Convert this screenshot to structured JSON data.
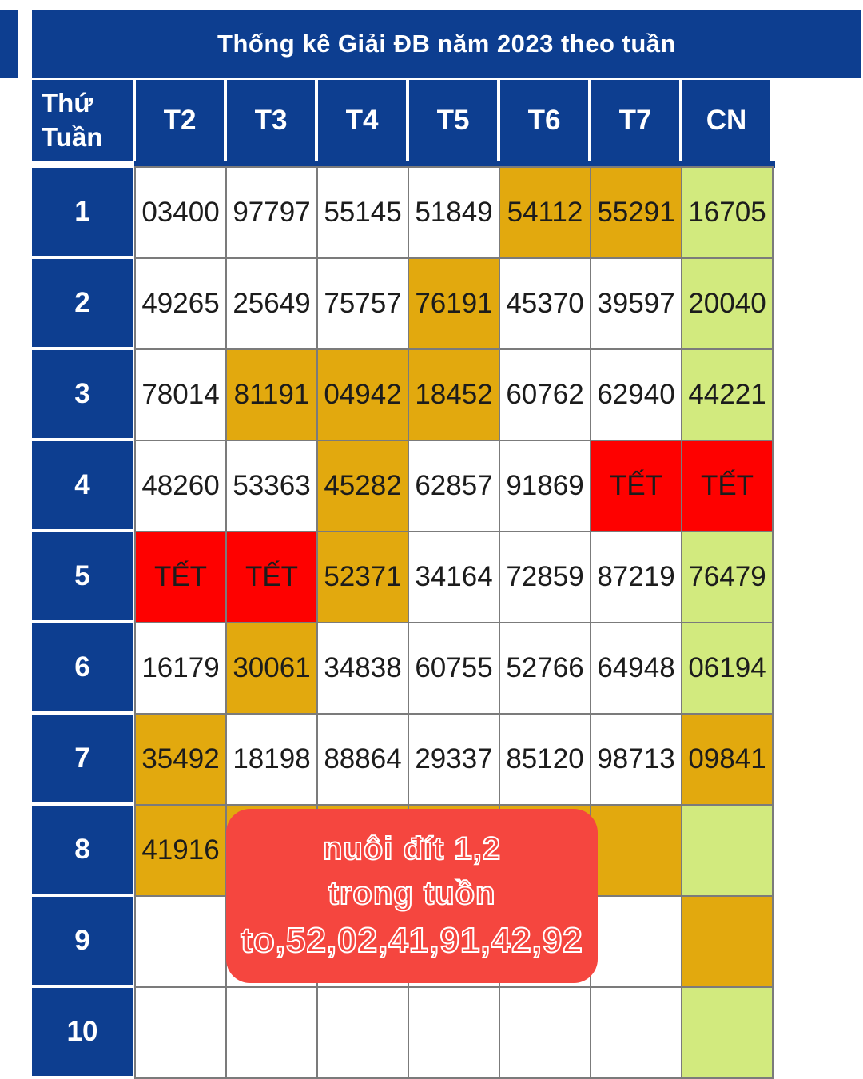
{
  "title": "Thống kê Giải ĐB năm 2023 theo tuần",
  "header": {
    "corner_line1": "Thứ",
    "corner_line2": "Tuần",
    "days": [
      "T2",
      "T3",
      "T4",
      "T5",
      "T6",
      "T7",
      "CN"
    ]
  },
  "rows": [
    {
      "week": "1",
      "cells": [
        {
          "v": "03400",
          "bg": "w"
        },
        {
          "v": "97797",
          "bg": "w"
        },
        {
          "v": "55145",
          "bg": "w"
        },
        {
          "v": "51849",
          "bg": "w"
        },
        {
          "v": "54112",
          "bg": "o"
        },
        {
          "v": "55291",
          "bg": "o"
        },
        {
          "v": "16705",
          "bg": "g"
        }
      ]
    },
    {
      "week": "2",
      "cells": [
        {
          "v": "49265",
          "bg": "w"
        },
        {
          "v": "25649",
          "bg": "w"
        },
        {
          "v": "75757",
          "bg": "w"
        },
        {
          "v": "76191",
          "bg": "o"
        },
        {
          "v": "45370",
          "bg": "w"
        },
        {
          "v": "39597",
          "bg": "w"
        },
        {
          "v": "20040",
          "bg": "g"
        }
      ]
    },
    {
      "week": "3",
      "cells": [
        {
          "v": "78014",
          "bg": "w"
        },
        {
          "v": "81191",
          "bg": "o"
        },
        {
          "v": "04942",
          "bg": "o"
        },
        {
          "v": "18452",
          "bg": "o"
        },
        {
          "v": "60762",
          "bg": "w"
        },
        {
          "v": "62940",
          "bg": "w"
        },
        {
          "v": "44221",
          "bg": "g"
        }
      ]
    },
    {
      "week": "4",
      "cells": [
        {
          "v": "48260",
          "bg": "w"
        },
        {
          "v": "53363",
          "bg": "w"
        },
        {
          "v": "45282",
          "bg": "o"
        },
        {
          "v": "62857",
          "bg": "w"
        },
        {
          "v": "91869",
          "bg": "w"
        },
        {
          "v": "TẾT",
          "bg": "r"
        },
        {
          "v": "TẾT",
          "bg": "r"
        }
      ]
    },
    {
      "week": "5",
      "cells": [
        {
          "v": "TẾT",
          "bg": "r"
        },
        {
          "v": "TẾT",
          "bg": "r"
        },
        {
          "v": "52371",
          "bg": "o"
        },
        {
          "v": "34164",
          "bg": "w"
        },
        {
          "v": "72859",
          "bg": "w"
        },
        {
          "v": "87219",
          "bg": "w"
        },
        {
          "v": "76479",
          "bg": "g"
        }
      ]
    },
    {
      "week": "6",
      "cells": [
        {
          "v": "16179",
          "bg": "w"
        },
        {
          "v": "30061",
          "bg": "o"
        },
        {
          "v": "34838",
          "bg": "w"
        },
        {
          "v": "60755",
          "bg": "w"
        },
        {
          "v": "52766",
          "bg": "w"
        },
        {
          "v": "64948",
          "bg": "w"
        },
        {
          "v": "06194",
          "bg": "g"
        }
      ]
    },
    {
      "week": "7",
      "cells": [
        {
          "v": "35492",
          "bg": "o"
        },
        {
          "v": "18198",
          "bg": "w"
        },
        {
          "v": "88864",
          "bg": "w"
        },
        {
          "v": "29337",
          "bg": "w"
        },
        {
          "v": "85120",
          "bg": "w"
        },
        {
          "v": "98713",
          "bg": "w"
        },
        {
          "v": "09841",
          "bg": "o"
        }
      ]
    },
    {
      "week": "8",
      "cells": [
        {
          "v": "41916",
          "bg": "o"
        },
        {
          "v": "",
          "bg": "o"
        },
        {
          "v": "",
          "bg": "o"
        },
        {
          "v": "",
          "bg": "o"
        },
        {
          "v": "",
          "bg": "o"
        },
        {
          "v": "",
          "bg": "o"
        },
        {
          "v": "",
          "bg": "g"
        }
      ]
    },
    {
      "week": "9",
      "cells": [
        {
          "v": "",
          "bg": "w"
        },
        {
          "v": "",
          "bg": "w"
        },
        {
          "v": "",
          "bg": "w"
        },
        {
          "v": "",
          "bg": "w"
        },
        {
          "v": "",
          "bg": "w"
        },
        {
          "v": "",
          "bg": "w"
        },
        {
          "v": "",
          "bg": "o"
        }
      ]
    },
    {
      "week": "10",
      "cells": [
        {
          "v": "",
          "bg": "w"
        },
        {
          "v": "",
          "bg": "w"
        },
        {
          "v": "",
          "bg": "w"
        },
        {
          "v": "",
          "bg": "w"
        },
        {
          "v": "",
          "bg": "w"
        },
        {
          "v": "",
          "bg": "w"
        },
        {
          "v": "",
          "bg": "g"
        }
      ]
    }
  ],
  "overlay": {
    "lines": [
      "nuôi đít 1,2",
      "trong tuồn",
      "to,52,02,41,91,42,92"
    ]
  },
  "colors": {
    "header_blue": "#0d3e90",
    "highlight_gold": "#e2a90e",
    "sunday_green": "#d2ea7e",
    "tet_red": "#fe0100",
    "sticker_red": "#f5463f",
    "grid_border": "#7b7b7b"
  }
}
